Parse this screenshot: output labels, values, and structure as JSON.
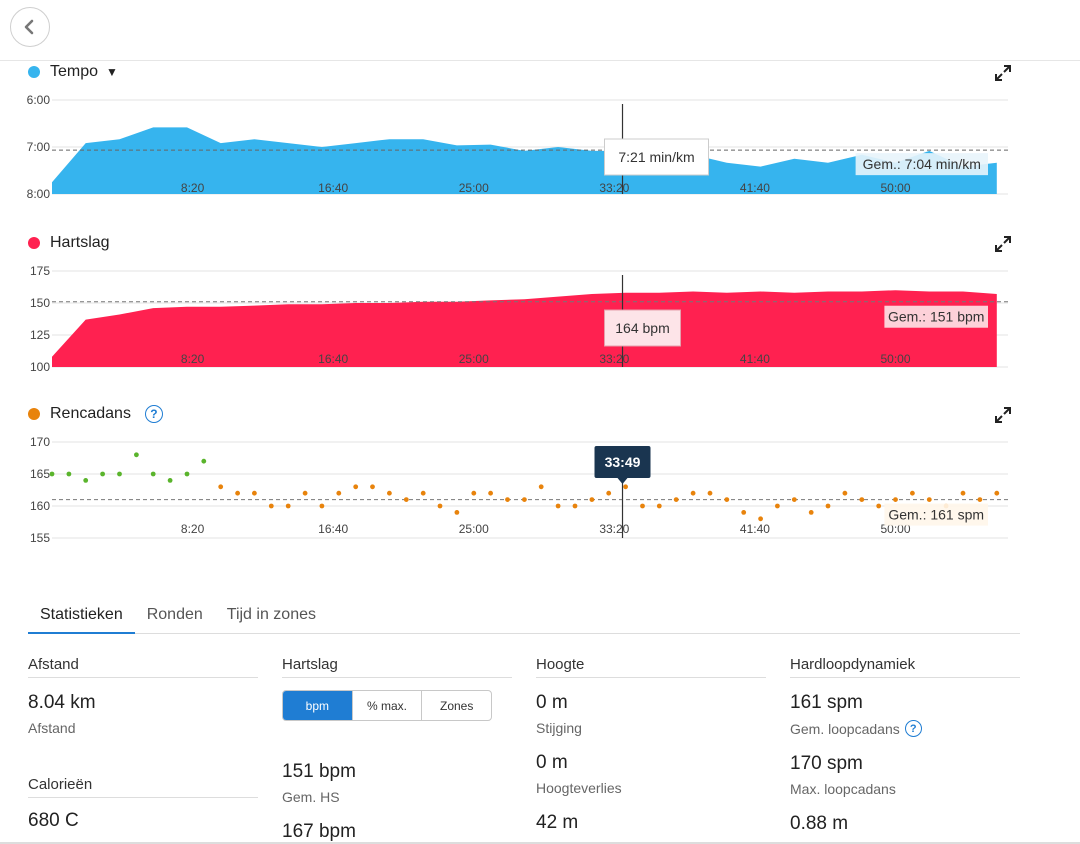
{
  "colors": {
    "tempo": "#36b4ee",
    "hartslag": "#ff2150",
    "cadans_orange": "#e8830c",
    "cadans_green": "#5ab42c",
    "accent": "#1f7dd3"
  },
  "charts": {
    "tempo": {
      "title": "Tempo",
      "y_ticks": [
        "6:00",
        "7:00",
        "8:00"
      ],
      "x_ticks": [
        "8:20",
        "16:40",
        "25:00",
        "33:20",
        "41:40",
        "50:00"
      ],
      "tooltip": "7:21 min/km",
      "average": "Gem.: 7:04 min/km"
    },
    "hartslag": {
      "title": "Hartslag",
      "y_ticks": [
        "175",
        "150",
        "125",
        "100"
      ],
      "x_ticks": [
        "8:20",
        "16:40",
        "25:00",
        "33:20",
        "41:40",
        "50:00"
      ],
      "tooltip": "164 bpm",
      "average": "Gem.: 151 bpm"
    },
    "rencadans": {
      "title": "Rencadans",
      "y_ticks": [
        "170",
        "165",
        "160",
        "155"
      ],
      "x_ticks": [
        "8:20",
        "16:40",
        "25:00",
        "33:20",
        "41:40",
        "50:00"
      ],
      "tooltip": "33:49",
      "average": "Gem.: 161 spm"
    }
  },
  "chart_data": [
    {
      "type": "area",
      "title": "Tempo",
      "y_unit": "min/km",
      "y_inverted": true,
      "ylim": [
        "8:00",
        "6:00"
      ],
      "x_unit": "time",
      "xlim": [
        "0:00",
        "56:40"
      ],
      "x": [
        "0:00",
        "2:00",
        "4:00",
        "6:00",
        "8:00",
        "10:00",
        "12:00",
        "14:00",
        "16:00",
        "18:00",
        "20:00",
        "22:00",
        "24:00",
        "26:00",
        "28:00",
        "30:00",
        "32:00",
        "34:00",
        "36:00",
        "38:00",
        "40:00",
        "42:00",
        "44:00",
        "46:00",
        "48:00",
        "50:00",
        "52:00",
        "54:00",
        "56:00"
      ],
      "y": [
        "7:45",
        "6:55",
        "6:50",
        "6:35",
        "6:35",
        "6:55",
        "6:50",
        "6:55",
        "7:00",
        "6:55",
        "6:50",
        "6:50",
        "6:58",
        "6:57",
        "7:05",
        "7:00",
        "7:05",
        "7:05",
        "7:15",
        "7:10",
        "7:20",
        "7:25",
        "7:15",
        "7:20",
        "7:10",
        "7:20",
        "7:05",
        "7:25",
        "7:20"
      ],
      "average": "7:04",
      "cursor": "33:49",
      "cursor_value": "7:21"
    },
    {
      "type": "area",
      "title": "Hartslag",
      "y_unit": "bpm",
      "ylim": [
        100,
        175
      ],
      "x_unit": "time",
      "xlim": [
        "0:00",
        "56:40"
      ],
      "x": [
        "0:00",
        "2:00",
        "4:00",
        "6:00",
        "8:00",
        "10:00",
        "12:00",
        "14:00",
        "16:00",
        "18:00",
        "20:00",
        "22:00",
        "24:00",
        "26:00",
        "28:00",
        "30:00",
        "32:00",
        "34:00",
        "36:00",
        "38:00",
        "40:00",
        "42:00",
        "44:00",
        "46:00",
        "48:00",
        "50:00",
        "52:00",
        "54:00",
        "56:00"
      ],
      "y": [
        108,
        137,
        141,
        146,
        147,
        147,
        148,
        149,
        149,
        150,
        150,
        151,
        151,
        152,
        153,
        155,
        157,
        158,
        158,
        159,
        158,
        159,
        158,
        159,
        159,
        160,
        159,
        159,
        157
      ],
      "average": 151,
      "cursor": "33:49",
      "cursor_value": 164
    },
    {
      "type": "scatter",
      "title": "Rencadans",
      "y_unit": "spm",
      "ylim": [
        155,
        170
      ],
      "x_unit": "time",
      "xlim": [
        "0:00",
        "56:40"
      ],
      "x": [
        "0:00",
        "1:00",
        "2:00",
        "3:00",
        "4:00",
        "5:00",
        "6:00",
        "7:00",
        "8:00",
        "9:00",
        "10:00",
        "11:00",
        "12:00",
        "13:00",
        "14:00",
        "15:00",
        "16:00",
        "17:00",
        "18:00",
        "19:00",
        "20:00",
        "21:00",
        "22:00",
        "23:00",
        "24:00",
        "25:00",
        "26:00",
        "27:00",
        "28:00",
        "29:00",
        "30:00",
        "31:00",
        "32:00",
        "33:00",
        "34:00",
        "35:00",
        "36:00",
        "37:00",
        "38:00",
        "39:00",
        "40:00",
        "41:00",
        "42:00",
        "43:00",
        "44:00",
        "45:00",
        "46:00",
        "47:00",
        "48:00",
        "49:00",
        "50:00",
        "51:00",
        "52:00",
        "53:00",
        "54:00",
        "55:00",
        "56:00"
      ],
      "y": [
        165,
        165,
        164,
        165,
        165,
        168,
        165,
        164,
        165,
        167,
        163,
        162,
        162,
        160,
        160,
        162,
        160,
        162,
        163,
        163,
        162,
        161,
        162,
        160,
        159,
        162,
        162,
        161,
        161,
        163,
        160,
        160,
        161,
        162,
        163,
        160,
        160,
        161,
        162,
        162,
        161,
        159,
        158,
        160,
        161,
        159,
        160,
        162,
        161,
        160,
        161,
        162,
        161,
        160,
        162,
        161,
        162
      ],
      "average": 161,
      "cursor": "33:49"
    }
  ],
  "tabs": [
    "Statistieken",
    "Ronden",
    "Tijd in zones"
  ],
  "stats": {
    "afstand": {
      "head": "Afstand",
      "value": "8.04 km",
      "label": "Afstand"
    },
    "calorieen": {
      "head": "Calorieën",
      "value": "680 C"
    },
    "hartslag": {
      "head": "Hartslag",
      "toggle": [
        "bpm",
        "% max.",
        "Zones"
      ],
      "avg_value": "151 bpm",
      "avg_label": "Gem. HS",
      "max_value": "167 bpm"
    },
    "hoogte": {
      "head": "Hoogte",
      "v1": "0 m",
      "l1": "Stijging",
      "v2": "0 m",
      "l2": "Hoogteverlies",
      "v3": "42 m"
    },
    "dynamiek": {
      "head": "Hardloopdynamiek",
      "v1": "161 spm",
      "l1": "Gem. loopcadans",
      "v2": "170 spm",
      "l2": "Max. loopcadans",
      "v3": "0.88 m"
    }
  }
}
